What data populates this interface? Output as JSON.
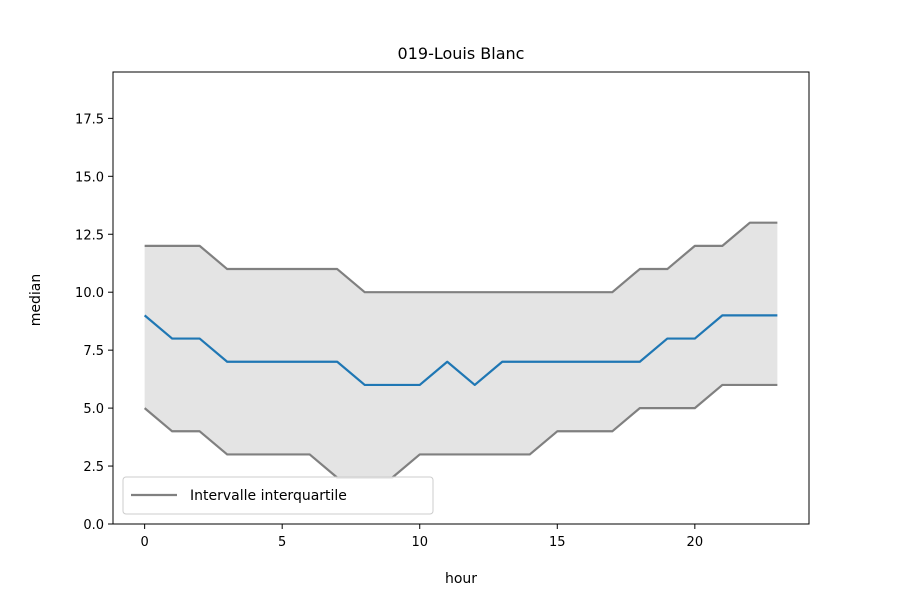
{
  "chart_data": {
    "type": "line",
    "title": "019-Louis Blanc",
    "xlabel": "hour",
    "ylabel": "median",
    "xlim": [
      -1.15,
      24.15
    ],
    "ylim": [
      0,
      19.5
    ],
    "xticks": [
      0,
      5,
      10,
      15,
      20
    ],
    "yticks": [
      0.0,
      2.5,
      5.0,
      7.5,
      10.0,
      12.5,
      15.0,
      17.5
    ],
    "x": [
      0,
      1,
      2,
      3,
      4,
      5,
      6,
      7,
      8,
      9,
      10,
      11,
      12,
      13,
      14,
      15,
      16,
      17,
      18,
      19,
      20,
      21,
      22,
      23
    ],
    "series": [
      {
        "role": "median",
        "color": "#1f77b4",
        "values": [
          9,
          8,
          8,
          7,
          7,
          7,
          7,
          7,
          6,
          6,
          6,
          7,
          6,
          7,
          7,
          7,
          7,
          7,
          7,
          8,
          8,
          9,
          9,
          9
        ]
      },
      {
        "role": "q3",
        "name": "Intervalle interquartile",
        "color": "#808080",
        "values": [
          12,
          12,
          12,
          11,
          11,
          11,
          11,
          11,
          10,
          10,
          10,
          10,
          10,
          10,
          10,
          10,
          10,
          10,
          11,
          11,
          12,
          12,
          13,
          13
        ]
      },
      {
        "role": "q1",
        "color": "#808080",
        "values": [
          5,
          4,
          4,
          3,
          3,
          3,
          3,
          2,
          2,
          2,
          3,
          3,
          3,
          3,
          3,
          4,
          4,
          4,
          5,
          5,
          5,
          6,
          6,
          6
        ]
      }
    ],
    "fill_color": "#e4e4e4",
    "grid": false,
    "legend": {
      "position": "lower-left",
      "entries": [
        "Intervalle interquartile"
      ]
    }
  }
}
